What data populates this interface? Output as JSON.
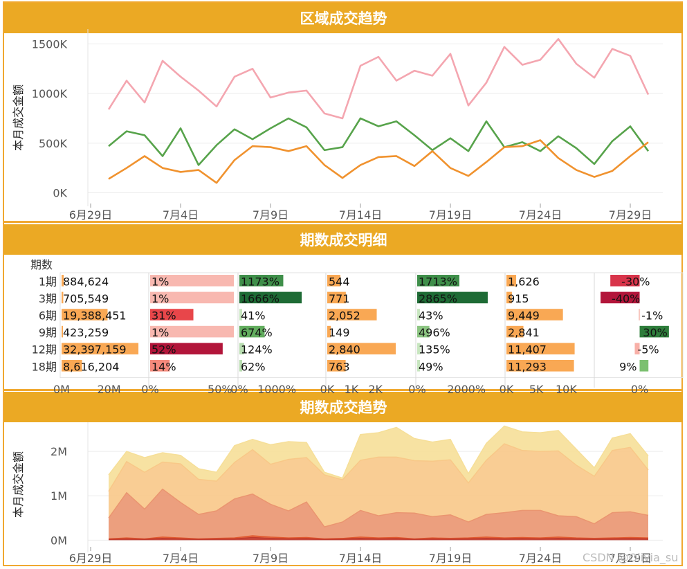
{
  "chart_data": [
    {
      "type": "line",
      "title": "区域成交趋势",
      "ylabel": "本月成交金额",
      "x_tick_labels": [
        "6月29日",
        "7月4日",
        "7月9日",
        "7月14日",
        "7月19日",
        "7月24日",
        "7月29日"
      ],
      "x_tick_days": [
        0,
        5,
        10,
        15,
        20,
        25,
        30
      ],
      "y_tick_labels": [
        "1500K",
        "1000K",
        "500K",
        "0K"
      ],
      "y_tick_values": [
        1500,
        1000,
        500,
        0
      ],
      "ylim": [
        -80,
        1580
      ],
      "x_start_day": 1,
      "series": [
        {
          "name": "series-pink",
          "color": "#f4a6b0",
          "values": [
            840,
            1130,
            910,
            1330,
            1170,
            1030,
            870,
            1170,
            1250,
            960,
            1010,
            1030,
            800,
            750,
            1280,
            1370,
            1130,
            1230,
            1180,
            1400,
            880,
            1110,
            1470,
            1290,
            1340,
            1550,
            1300,
            1160,
            1450,
            1380,
            990
          ]
        },
        {
          "name": "series-green",
          "color": "#57a34b",
          "values": [
            470,
            620,
            580,
            370,
            650,
            280,
            480,
            640,
            540,
            650,
            750,
            660,
            430,
            460,
            750,
            670,
            720,
            580,
            430,
            550,
            420,
            720,
            460,
            510,
            420,
            570,
            450,
            290,
            520,
            670,
            420
          ]
        },
        {
          "name": "series-orange",
          "color": "#f0922e",
          "values": [
            140,
            250,
            370,
            250,
            210,
            230,
            100,
            330,
            470,
            460,
            420,
            470,
            280,
            150,
            280,
            360,
            370,
            270,
            420,
            250,
            170,
            310,
            460,
            470,
            530,
            350,
            230,
            160,
            220,
            370,
            510
          ]
        }
      ]
    },
    {
      "type": "table",
      "title": "期数成交明细",
      "row_header": "期数",
      "rows": [
        "1期",
        "3期",
        "6期",
        "9期",
        "12期",
        "18期"
      ],
      "columns": [
        {
          "name": "col-amount",
          "type": "bar",
          "axis_max": 35000000,
          "axis_ticks": [
            "0M",
            "20M"
          ],
          "axis_tick_values": [
            0,
            20000000
          ],
          "values": [
            884624,
            705549,
            19388451,
            423259,
            32397159,
            8616204
          ],
          "labels": [
            "884,624",
            "705,549",
            "19,388,451",
            "423,259",
            "32,397,159",
            "8,616,204"
          ]
        },
        {
          "name": "col-amount-pct",
          "type": "heat-bar",
          "axis_max": 60,
          "axis_ticks": [
            "0%",
            "50%"
          ],
          "axis_tick_values": [
            0,
            50
          ],
          "values": [
            1,
            1,
            31,
            1,
            52,
            14
          ],
          "labels": [
            "1%",
            "1%",
            "31%",
            "1%",
            "52%",
            "14%"
          ],
          "colors": [
            "#f8b8b0",
            "#f8b8b0",
            "#e8464a",
            "#f8b8b0",
            "#b2153a",
            "#f58a7c"
          ],
          "full_bar": [
            true,
            true,
            false,
            true,
            false,
            false
          ]
        },
        {
          "name": "col-amount-growth",
          "type": "heat-bar",
          "axis_max": 2200,
          "axis_ticks": [
            "0%",
            "1000%"
          ],
          "axis_tick_values": [
            0,
            1000
          ],
          "values": [
            1173,
            1666,
            41,
            674,
            124,
            62
          ],
          "labels": [
            "1173%",
            "1666%",
            "41%",
            "674%",
            "124%",
            "62%"
          ],
          "colors": [
            "#3f8f4a",
            "#1e6b35",
            "#c8e6c0",
            "#62ad5e",
            "#b8ddb0",
            "#b8ddb0"
          ]
        },
        {
          "name": "col-count",
          "type": "bar",
          "axis_max": 3500,
          "axis_ticks": [
            "0K",
            "1K",
            "2K"
          ],
          "axis_tick_values": [
            0,
            1000,
            2000
          ],
          "values": [
            544,
            771,
            2052,
            149,
            2840,
            763
          ],
          "labels": [
            "544",
            "771",
            "2,052",
            "149",
            "2,840",
            "763"
          ]
        },
        {
          "name": "col-count-growth",
          "type": "heat-bar",
          "axis_max": 3400,
          "axis_ticks": [
            "0%",
            "2000%"
          ],
          "axis_tick_values": [
            0,
            2000
          ],
          "values": [
            1713,
            2865,
            43,
            496,
            135,
            49
          ],
          "labels": [
            "1713%",
            "2865%",
            "43%",
            "496%",
            "135%",
            "49%"
          ],
          "colors": [
            "#3f8f4a",
            "#1e6b35",
            "#c8e6c0",
            "#8cc582",
            "#c8e6c0",
            "#c8e6c0"
          ]
        },
        {
          "name": "col-avg-price",
          "type": "bar",
          "axis_max": 14000,
          "axis_ticks": [
            "0K",
            "5K",
            "10K"
          ],
          "axis_tick_values": [
            0,
            5000,
            10000
          ],
          "values": [
            1626,
            915,
            9449,
            2841,
            11407,
            11293
          ],
          "labels": [
            "1,626",
            "915",
            "9,449",
            "2,841",
            "11,407",
            "11,293"
          ]
        },
        {
          "name": "col-avg-growth",
          "type": "diverging",
          "axis_min": -45,
          "axis_max": 40,
          "axis_ticks": [
            "0%"
          ],
          "axis_tick_values": [
            0
          ],
          "values": [
            -30,
            -40,
            -1,
            30,
            -5,
            9
          ],
          "labels": [
            "-30%",
            "-40%",
            "-1%",
            "30%",
            "-5%",
            "9%"
          ],
          "colors": [
            "#d8344a",
            "#b2153a",
            "#f8c8c0",
            "#2e7d3b",
            "#f8b0a8",
            "#7cc070"
          ]
        }
      ],
      "bar_color": "#f9a854"
    },
    {
      "type": "area",
      "title": "期数成交趋势",
      "ylabel": "本月成交金额",
      "x_tick_labels": [
        "6月29日",
        "7月4日",
        "7月9日",
        "7月14日",
        "7月19日",
        "7月24日",
        "7月29日"
      ],
      "x_tick_days": [
        0,
        5,
        10,
        15,
        20,
        25,
        30
      ],
      "y_tick_labels": [
        "2M",
        "1M",
        "0M"
      ],
      "y_tick_values": [
        2000,
        1000,
        0
      ],
      "ylim": [
        -150,
        2500
      ],
      "x_start_day": 1,
      "stacked": true,
      "series": [
        {
          "name": "area-1",
          "color": "#c0392b",
          "values": [
            20,
            30,
            20,
            40,
            30,
            20,
            25,
            30,
            60,
            40,
            30,
            35,
            20,
            25,
            40,
            30,
            35,
            20,
            30,
            25,
            30,
            40,
            30,
            35,
            30,
            40,
            30,
            25,
            30,
            35,
            30
          ]
        },
        {
          "name": "area-2",
          "color": "#e05a30",
          "values": [
            10,
            20,
            10,
            30,
            20,
            10,
            15,
            20,
            40,
            30,
            20,
            25,
            10,
            15,
            30,
            20,
            25,
            10,
            20,
            15,
            20,
            30,
            20,
            25,
            20,
            30,
            20,
            15,
            20,
            25,
            20
          ]
        },
        {
          "name": "area-3",
          "color": "#ea9570",
          "values": [
            470,
            1020,
            670,
            1080,
            800,
            550,
            620,
            880,
            940,
            740,
            610,
            800,
            270,
            370,
            600,
            500,
            560,
            580,
            480,
            530,
            360,
            510,
            570,
            610,
            620,
            480,
            480,
            330,
            570,
            580,
            510
          ]
        },
        {
          "name": "area-4",
          "color": "#f8c888",
          "values": [
            600,
            700,
            830,
            610,
            870,
            790,
            670,
            820,
            1000,
            900,
            1160,
            1000,
            1170,
            950,
            1130,
            1320,
            1250,
            1180,
            1250,
            1240,
            880,
            1220,
            1550,
            1350,
            1330,
            1460,
            1160,
            1070,
            1400,
            1450,
            1020
          ]
        },
        {
          "name": "area-5",
          "color": "#f6df98",
          "values": [
            370,
            230,
            330,
            210,
            190,
            240,
            200,
            380,
            230,
            440,
            400,
            340,
            60,
            40,
            580,
            550,
            670,
            500,
            430,
            460,
            210,
            380,
            400,
            420,
            420,
            460,
            360,
            190,
            280,
            310,
            320
          ]
        }
      ]
    }
  ],
  "watermark": "CSDN @Olivia_su"
}
